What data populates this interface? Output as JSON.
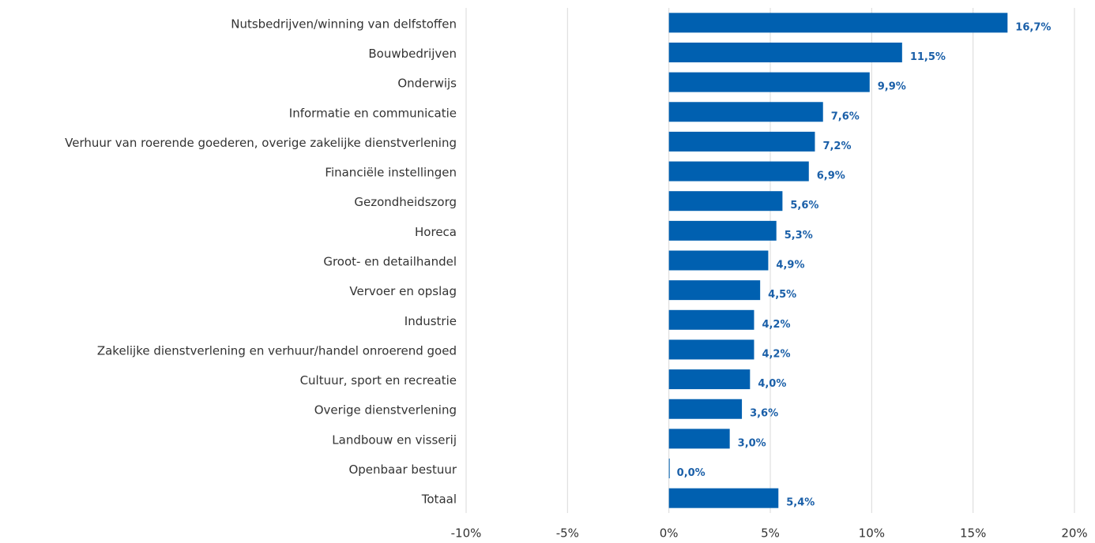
{
  "chart_data": {
    "type": "bar",
    "orientation": "horizontal",
    "categories": [
      "Nutsbedrijven/winning van delfstoffen",
      "Bouwbedrijven",
      "Onderwijs",
      "Informatie en communicatie",
      "Verhuur van roerende goederen, overige zakelijke dienstverlening",
      "Financiële instellingen",
      "Gezondheidszorg",
      "Horeca",
      "Groot- en detailhandel",
      "Vervoer en opslag",
      "Industrie",
      "Zakelijke dienstverlening en verhuur/handel onroerend goed",
      "Cultuur, sport en recreatie",
      "Overige dienstverlening",
      "Landbouw en visserij",
      "Openbaar bestuur",
      "Totaal"
    ],
    "values": [
      16.7,
      11.5,
      9.9,
      7.6,
      7.2,
      6.9,
      5.6,
      5.3,
      4.9,
      4.5,
      4.2,
      4.2,
      4.0,
      3.6,
      3.0,
      0.0,
      5.4
    ],
    "value_labels": [
      "16,7%",
      "11,5%",
      "9,9%",
      "7,6%",
      "7,2%",
      "6,9%",
      "5,6%",
      "5,3%",
      "4,9%",
      "4,5%",
      "4,2%",
      "4,2%",
      "4,0%",
      "3,6%",
      "3,0%",
      "0,0%",
      "5,4%"
    ],
    "color": "#0060b0",
    "xlim": [
      -10,
      20
    ],
    "xticks": [
      {
        "value": -10,
        "label": "-10%"
      },
      {
        "value": -5,
        "label": "-5%"
      },
      {
        "value": 0,
        "label": "0%"
      },
      {
        "value": 5,
        "label": "5%"
      },
      {
        "value": 10,
        "label": "10%"
      },
      {
        "value": 15,
        "label": "15%"
      },
      {
        "value": 20,
        "label": "20%"
      }
    ],
    "grid": true
  }
}
